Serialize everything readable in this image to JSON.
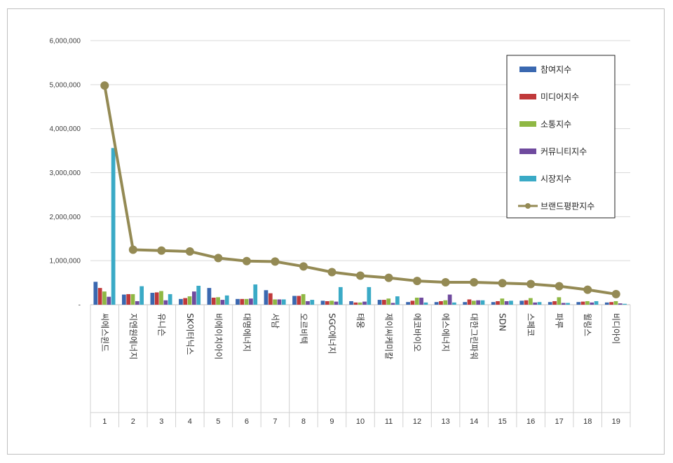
{
  "chart_data": {
    "type": "bar",
    "title": "",
    "xlabel": "",
    "ylabel": "",
    "ylim": [
      0,
      6000000
    ],
    "yticks": [
      "-",
      "1,000,000",
      "2,000,000",
      "3,000,000",
      "4,000,000",
      "5,000,000",
      "6,000,000"
    ],
    "grid": true,
    "legend_position": "top-right",
    "numbers": [
      "1",
      "2",
      "3",
      "4",
      "5",
      "6",
      "7",
      "8",
      "9",
      "10",
      "11",
      "12",
      "13",
      "14",
      "15",
      "16",
      "17",
      "18",
      "19"
    ],
    "categories": [
      "씨에스윈드",
      "지엔원에너지",
      "유니슨",
      "SK이터닉스",
      "비에이치아이",
      "대명에너지",
      "서남",
      "오르비텍",
      "SGC에너지",
      "태웅",
      "제이씨케미칼",
      "에코바이오",
      "에스에너지",
      "대한그린파워",
      "SDN",
      "스페코",
      "파루",
      "윌링스",
      "비디아이"
    ],
    "series": [
      {
        "name": "참여지수",
        "type": "bar",
        "color": "#3a68b0",
        "values": [
          520000,
          230000,
          270000,
          130000,
          380000,
          130000,
          330000,
          200000,
          90000,
          80000,
          110000,
          60000,
          60000,
          60000,
          60000,
          90000,
          60000,
          60000,
          50000
        ]
      },
      {
        "name": "미디어지수",
        "type": "bar",
        "color": "#c0393a",
        "values": [
          380000,
          240000,
          280000,
          150000,
          160000,
          130000,
          260000,
          200000,
          80000,
          50000,
          110000,
          90000,
          80000,
          120000,
          80000,
          100000,
          80000,
          70000,
          60000
        ]
      },
      {
        "name": "소통지수",
        "type": "bar",
        "color": "#8fb844",
        "values": [
          300000,
          240000,
          310000,
          190000,
          170000,
          130000,
          120000,
          240000,
          90000,
          50000,
          140000,
          160000,
          100000,
          90000,
          140000,
          150000,
          170000,
          80000,
          80000
        ]
      },
      {
        "name": "커뮤니티지수",
        "type": "bar",
        "color": "#6f4a9e",
        "values": [
          180000,
          80000,
          100000,
          300000,
          110000,
          140000,
          120000,
          80000,
          70000,
          70000,
          40000,
          160000,
          230000,
          100000,
          80000,
          50000,
          40000,
          50000,
          30000
        ]
      },
      {
        "name": "시장지수",
        "type": "bar",
        "color": "#3aaac6",
        "values": [
          3560000,
          420000,
          240000,
          430000,
          210000,
          460000,
          120000,
          110000,
          400000,
          400000,
          190000,
          50000,
          50000,
          100000,
          90000,
          60000,
          40000,
          80000,
          20000
        ]
      },
      {
        "name": "브랜드평판지수",
        "type": "line",
        "color": "#948a54",
        "values": [
          4980000,
          1250000,
          1230000,
          1210000,
          1060000,
          990000,
          980000,
          870000,
          740000,
          660000,
          610000,
          540000,
          510000,
          510000,
          490000,
          470000,
          420000,
          340000,
          240000
        ]
      }
    ]
  }
}
